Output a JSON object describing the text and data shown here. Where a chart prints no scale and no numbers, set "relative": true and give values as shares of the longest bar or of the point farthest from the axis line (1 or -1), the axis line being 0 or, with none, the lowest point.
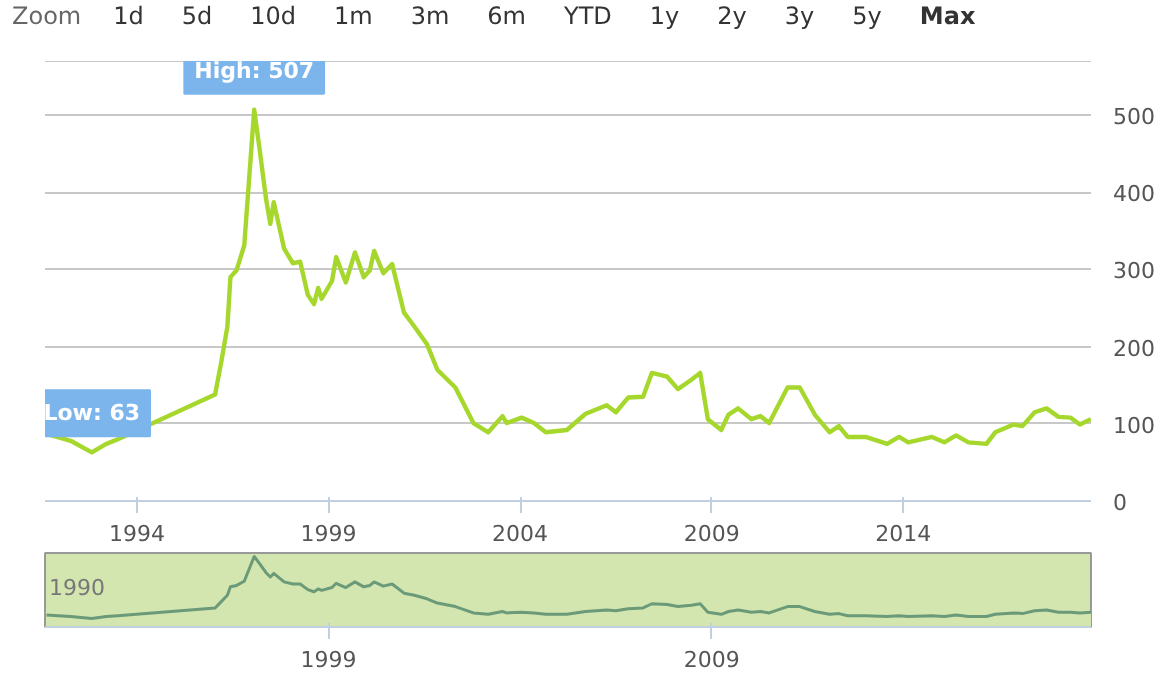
{
  "chart_data": [
    {
      "type": "line",
      "color": "#a6d72c",
      "line_style": "solid",
      "grid": "y",
      "tick_labels": true,
      "xlim": [
        1991.6,
        2018.9
      ],
      "ylim": [
        0,
        570
      ],
      "xticks": [
        1994,
        1999,
        2004,
        2009,
        2014
      ],
      "yticks": [
        0,
        100,
        200,
        300,
        400,
        500
      ],
      "x": [
        1991.64,
        1992.27,
        1992.82,
        1993.2,
        1993.5,
        1996.04,
        1996.2,
        1996.36,
        1996.44,
        1996.6,
        1996.8,
        1997.06,
        1997.2,
        1997.37,
        1997.48,
        1997.57,
        1997.84,
        1998.07,
        1998.26,
        1998.46,
        1998.62,
        1998.73,
        1998.82,
        1999.09,
        1999.2,
        1999.45,
        1999.69,
        1999.92,
        2000.08,
        2000.19,
        2000.43,
        2000.66,
        2000.97,
        2001.24,
        2001.57,
        2001.84,
        2002.31,
        2002.78,
        2003.17,
        2003.54,
        2003.65,
        2004.04,
        2004.36,
        2004.67,
        2005.22,
        2005.71,
        2006.26,
        2006.5,
        2006.82,
        2007.21,
        2007.44,
        2007.84,
        2008.12,
        2008.47,
        2008.7,
        2008.9,
        2009.25,
        2009.44,
        2009.69,
        2010.04,
        2010.27,
        2010.5,
        2010.98,
        2011.3,
        2011.69,
        2012.08,
        2012.32,
        2012.55,
        2013.02,
        2013.58,
        2013.89,
        2014.13,
        2014.75,
        2015.07,
        2015.38,
        2015.7,
        2016.17,
        2016.4,
        2016.88,
        2017.11,
        2017.43,
        2017.74,
        2018.05,
        2018.37,
        2018.61,
        2018.9
      ],
      "values": [
        87,
        78,
        63,
        74,
        80,
        138,
        180,
        226,
        290,
        299,
        331,
        507,
        456,
        391,
        359,
        387,
        327,
        308,
        310,
        267,
        255,
        276,
        262,
        285,
        316,
        283,
        322,
        290,
        299,
        324,
        295,
        307,
        244,
        226,
        203,
        170,
        147,
        101,
        89,
        110,
        101,
        108,
        101,
        89,
        92,
        113,
        124,
        115,
        134,
        135,
        166,
        161,
        145,
        157,
        166,
        106,
        92,
        112,
        120,
        106,
        110,
        101,
        147,
        147,
        112,
        89,
        97,
        83,
        83,
        74,
        83,
        76,
        83,
        76,
        85,
        76,
        74,
        89,
        99,
        97,
        115,
        120,
        109,
        108,
        99,
        106
      ],
      "annotations": [
        "Zoom",
        "1d",
        "5d",
        "10d",
        "1m",
        "3m",
        "6m",
        "YTD",
        "1y",
        "2y",
        "3y",
        "5y",
        "Max",
        {
          "text": "High: 507",
          "x": 1997.06,
          "y": 507
        },
        {
          "text": "Low: 63",
          "x": 1992.82,
          "y": 63
        }
      ]
    },
    {
      "type": "area",
      "color": "#6b9a78",
      "tick_labels": "x",
      "relative": true,
      "xlim": [
        1991.6,
        2018.9
      ],
      "xticks": [
        1999,
        2009
      ],
      "annotations": [
        "1990"
      ],
      "x": [
        1991.64,
        1992.27,
        1992.82,
        1993.2,
        1993.5,
        1996.04,
        1996.2,
        1996.36,
        1996.44,
        1996.6,
        1996.8,
        1997.06,
        1997.2,
        1997.37,
        1997.48,
        1997.57,
        1997.84,
        1998.07,
        1998.26,
        1998.46,
        1998.62,
        1998.73,
        1998.82,
        1999.09,
        1999.2,
        1999.45,
        1999.69,
        1999.92,
        2000.08,
        2000.19,
        2000.43,
        2000.66,
        2000.97,
        2001.24,
        2001.57,
        2001.84,
        2002.31,
        2002.78,
        2003.17,
        2003.54,
        2003.65,
        2004.04,
        2004.36,
        2004.67,
        2005.22,
        2005.71,
        2006.26,
        2006.5,
        2006.82,
        2007.21,
        2007.44,
        2007.84,
        2008.12,
        2008.47,
        2008.7,
        2008.9,
        2009.25,
        2009.44,
        2009.69,
        2010.04,
        2010.27,
        2010.5,
        2010.98,
        2011.3,
        2011.69,
        2012.08,
        2012.32,
        2012.55,
        2013.02,
        2013.58,
        2013.89,
        2014.13,
        2014.75,
        2015.07,
        2015.38,
        2015.7,
        2016.17,
        2016.4,
        2016.88,
        2017.11,
        2017.43,
        2017.74,
        2018.05,
        2018.37,
        2018.61,
        2018.9
      ],
      "values": [
        0.17,
        0.15,
        0.12,
        0.15,
        0.16,
        0.27,
        0.36,
        0.45,
        0.57,
        0.59,
        0.65,
        1,
        0.9,
        0.77,
        0.71,
        0.76,
        0.64,
        0.61,
        0.61,
        0.53,
        0.5,
        0.54,
        0.52,
        0.56,
        0.62,
        0.56,
        0.64,
        0.57,
        0.59,
        0.64,
        0.58,
        0.61,
        0.48,
        0.45,
        0.4,
        0.34,
        0.29,
        0.2,
        0.18,
        0.22,
        0.2,
        0.21,
        0.2,
        0.18,
        0.18,
        0.22,
        0.24,
        0.23,
        0.26,
        0.27,
        0.33,
        0.32,
        0.29,
        0.31,
        0.33,
        0.21,
        0.18,
        0.22,
        0.24,
        0.21,
        0.22,
        0.2,
        0.29,
        0.29,
        0.22,
        0.18,
        0.19,
        0.16,
        0.16,
        0.15,
        0.16,
        0.15,
        0.16,
        0.15,
        0.17,
        0.15,
        0.15,
        0.18,
        0.2,
        0.19,
        0.23,
        0.24,
        0.21,
        0.21,
        0.2,
        0.21
      ]
    }
  ]
}
